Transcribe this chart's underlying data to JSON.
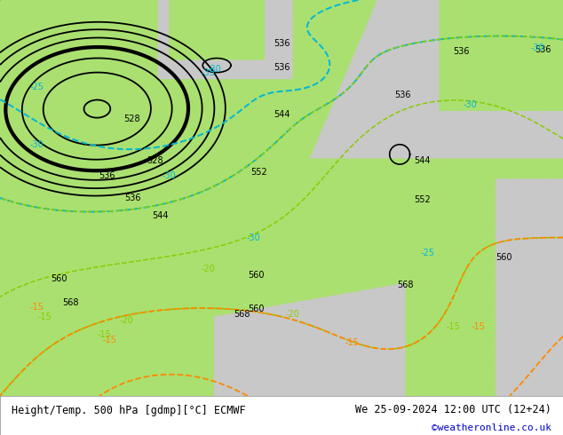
{
  "title_left": "Height/Temp. 500 hPa [gdmp][°C] ECMWF",
  "title_right": "We 25-09-2024 12:00 UTC (12+24)",
  "credit": "©weatheronline.co.uk",
  "bg_land_color": "#aae070",
  "bg_sea_color": "#c8c8c8",
  "fig_width": 6.34,
  "fig_height": 4.9,
  "dpi": 100,
  "contour_color_black": "#000000",
  "contour_color_cyan": "#00b8d4",
  "contour_color_green": "#88cc00",
  "contour_color_orange": "#ff8800",
  "bottom_bg": "#ffffff"
}
